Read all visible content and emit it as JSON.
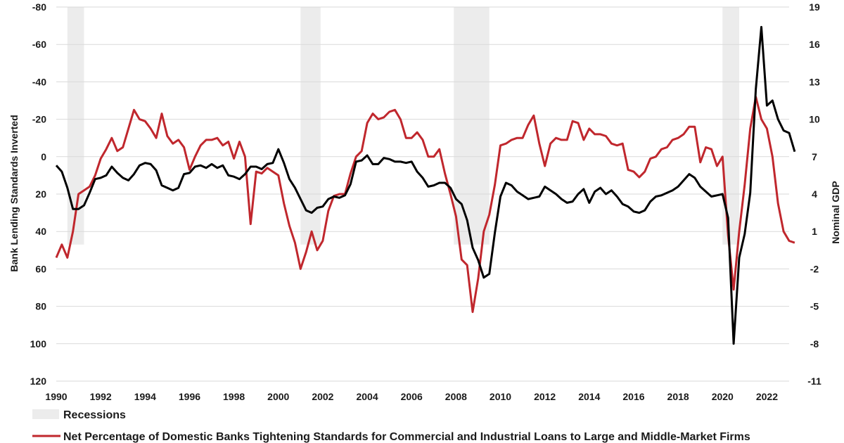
{
  "chart_data": {
    "type": "line",
    "title": "",
    "y_left": {
      "label": "Bank Lending Standards Inverted",
      "ylim": [
        -80,
        120
      ],
      "inverted": true,
      "ticks": [
        -80,
        -60,
        -40,
        -20,
        0,
        20,
        40,
        60,
        80,
        100,
        120
      ]
    },
    "y_right": {
      "label": "Nominal GDP",
      "ylim": [
        -11,
        19
      ],
      "ticks": [
        19,
        16,
        13,
        10,
        7,
        4,
        1,
        -2,
        -5,
        -8,
        -11
      ]
    },
    "x_axis": {
      "xlim": [
        1990,
        2023
      ],
      "ticks": [
        1990,
        1992,
        1994,
        1996,
        1998,
        2000,
        2002,
        2004,
        2006,
        2008,
        2010,
        2012,
        2014,
        2016,
        2018,
        2020,
        2022
      ]
    },
    "grid": true,
    "recessions": [
      [
        1990.5,
        1991.25
      ],
      [
        2001.0,
        2001.9
      ],
      [
        2007.9,
        2009.5
      ],
      [
        2020.0,
        2020.75
      ]
    ],
    "legend": [
      {
        "label": "Recessions",
        "kind": "area",
        "color": "#ececec"
      },
      {
        "label": "Net Percentage of Domestic Banks Tightening Standards for Commercial and Industrial Loans to Large and Middle-Market Firms",
        "kind": "line",
        "color": "#c0272d"
      }
    ],
    "series": [
      {
        "name": "Net Percentage of Domestic Banks Tightening Standards for Commercial and Industrial Loans to Large and Middle-Market Firms",
        "axis": "left",
        "color": "#c0272d",
        "points": [
          [
            1990.0,
            54
          ],
          [
            1990.25,
            47
          ],
          [
            1990.5,
            54
          ],
          [
            1990.75,
            40
          ],
          [
            1991.0,
            20
          ],
          [
            1991.25,
            18
          ],
          [
            1991.5,
            16
          ],
          [
            1991.75,
            10
          ],
          [
            1992.0,
            1
          ],
          [
            1992.25,
            -4
          ],
          [
            1992.5,
            -10
          ],
          [
            1992.75,
            -3
          ],
          [
            1993.0,
            -5
          ],
          [
            1993.25,
            -15
          ],
          [
            1993.5,
            -25
          ],
          [
            1993.75,
            -20
          ],
          [
            1994.0,
            -19
          ],
          [
            1994.25,
            -15
          ],
          [
            1994.5,
            -10
          ],
          [
            1994.75,
            -23
          ],
          [
            1995.0,
            -11
          ],
          [
            1995.25,
            -7
          ],
          [
            1995.5,
            -9
          ],
          [
            1995.75,
            -5
          ],
          [
            1996.0,
            7
          ],
          [
            1996.25,
            0
          ],
          [
            1996.5,
            -6
          ],
          [
            1996.75,
            -9
          ],
          [
            1997.0,
            -9
          ],
          [
            1997.25,
            -10
          ],
          [
            1997.5,
            -6
          ],
          [
            1997.75,
            -8
          ],
          [
            1998.0,
            1
          ],
          [
            1998.25,
            -8
          ],
          [
            1998.5,
            0
          ],
          [
            1998.75,
            36
          ],
          [
            1999.0,
            8
          ],
          [
            1999.25,
            9
          ],
          [
            1999.5,
            6
          ],
          [
            1999.75,
            8
          ],
          [
            2000.0,
            10
          ],
          [
            2000.25,
            25
          ],
          [
            2000.5,
            37
          ],
          [
            2000.75,
            46
          ],
          [
            2001.0,
            60
          ],
          [
            2001.25,
            51
          ],
          [
            2001.5,
            40
          ],
          [
            2001.75,
            50
          ],
          [
            2002.0,
            45
          ],
          [
            2002.25,
            29
          ],
          [
            2002.5,
            21
          ],
          [
            2002.75,
            20
          ],
          [
            2003.0,
            20
          ],
          [
            2003.25,
            9
          ],
          [
            2003.5,
            0
          ],
          [
            2003.75,
            -3
          ],
          [
            2004.0,
            -18
          ],
          [
            2004.25,
            -23
          ],
          [
            2004.5,
            -20
          ],
          [
            2004.75,
            -21
          ],
          [
            2005.0,
            -24
          ],
          [
            2005.25,
            -25
          ],
          [
            2005.5,
            -20
          ],
          [
            2005.75,
            -10
          ],
          [
            2006.0,
            -10
          ],
          [
            2006.25,
            -13
          ],
          [
            2006.5,
            -9
          ],
          [
            2006.75,
            0
          ],
          [
            2007.0,
            0
          ],
          [
            2007.25,
            -4
          ],
          [
            2007.5,
            9
          ],
          [
            2007.75,
            20
          ],
          [
            2008.0,
            32
          ],
          [
            2008.25,
            55
          ],
          [
            2008.5,
            58
          ],
          [
            2008.75,
            83
          ],
          [
            2009.0,
            65
          ],
          [
            2009.25,
            40
          ],
          [
            2009.5,
            31
          ],
          [
            2009.75,
            15
          ],
          [
            2010.0,
            -6
          ],
          [
            2010.25,
            -7
          ],
          [
            2010.5,
            -9
          ],
          [
            2010.75,
            -10
          ],
          [
            2011.0,
            -10
          ],
          [
            2011.25,
            -17
          ],
          [
            2011.5,
            -22
          ],
          [
            2011.75,
            -7
          ],
          [
            2012.0,
            5
          ],
          [
            2012.25,
            -7
          ],
          [
            2012.5,
            -10
          ],
          [
            2012.75,
            -9
          ],
          [
            2013.0,
            -9
          ],
          [
            2013.25,
            -19
          ],
          [
            2013.5,
            -18
          ],
          [
            2013.75,
            -9
          ],
          [
            2014.0,
            -15
          ],
          [
            2014.25,
            -12
          ],
          [
            2014.5,
            -12
          ],
          [
            2014.75,
            -11
          ],
          [
            2015.0,
            -7
          ],
          [
            2015.25,
            -6
          ],
          [
            2015.5,
            -7
          ],
          [
            2015.75,
            7
          ],
          [
            2016.0,
            8
          ],
          [
            2016.25,
            11
          ],
          [
            2016.5,
            8
          ],
          [
            2016.75,
            1
          ],
          [
            2017.0,
            0
          ],
          [
            2017.25,
            -4
          ],
          [
            2017.5,
            -5
          ],
          [
            2017.75,
            -9
          ],
          [
            2018.0,
            -10
          ],
          [
            2018.25,
            -12
          ],
          [
            2018.5,
            -16
          ],
          [
            2018.75,
            -16
          ],
          [
            2019.0,
            3
          ],
          [
            2019.25,
            -5
          ],
          [
            2019.5,
            -4
          ],
          [
            2019.75,
            5
          ],
          [
            2020.0,
            0
          ],
          [
            2020.25,
            42
          ],
          [
            2020.5,
            71
          ],
          [
            2020.75,
            40
          ],
          [
            2021.0,
            15
          ],
          [
            2021.25,
            -15
          ],
          [
            2021.5,
            -32
          ],
          [
            2021.75,
            -20
          ],
          [
            2022.0,
            -15
          ],
          [
            2022.25,
            0
          ],
          [
            2022.5,
            25
          ],
          [
            2022.75,
            40
          ],
          [
            2023.0,
            45
          ],
          [
            2023.25,
            46
          ]
        ]
      },
      {
        "name": "Nominal GDP",
        "axis": "right",
        "color": "#000000",
        "points": [
          [
            1990.0,
            6.3
          ],
          [
            1990.25,
            5.8
          ],
          [
            1990.5,
            4.5
          ],
          [
            1990.75,
            2.8
          ],
          [
            1991.0,
            2.8
          ],
          [
            1991.25,
            3.1
          ],
          [
            1991.5,
            4.1
          ],
          [
            1991.75,
            5.2
          ],
          [
            1992.0,
            5.3
          ],
          [
            1992.25,
            5.5
          ],
          [
            1992.5,
            6.2
          ],
          [
            1992.75,
            5.7
          ],
          [
            1993.0,
            5.3
          ],
          [
            1993.25,
            5.1
          ],
          [
            1993.5,
            5.6
          ],
          [
            1993.75,
            6.3
          ],
          [
            1994.0,
            6.5
          ],
          [
            1994.25,
            6.4
          ],
          [
            1994.5,
            5.9
          ],
          [
            1994.75,
            4.7
          ],
          [
            1995.0,
            4.5
          ],
          [
            1995.25,
            4.3
          ],
          [
            1995.5,
            4.5
          ],
          [
            1995.75,
            5.6
          ],
          [
            1996.0,
            5.7
          ],
          [
            1996.25,
            6.2
          ],
          [
            1996.5,
            6.3
          ],
          [
            1996.75,
            6.1
          ],
          [
            1997.0,
            6.4
          ],
          [
            1997.25,
            6.1
          ],
          [
            1997.5,
            6.3
          ],
          [
            1997.75,
            5.5
          ],
          [
            1998.0,
            5.4
          ],
          [
            1998.25,
            5.2
          ],
          [
            1998.5,
            5.6
          ],
          [
            1998.75,
            6.2
          ],
          [
            1999.0,
            6.2
          ],
          [
            1999.25,
            6.0
          ],
          [
            1999.5,
            6.4
          ],
          [
            1999.75,
            6.5
          ],
          [
            2000.0,
            7.6
          ],
          [
            2000.25,
            6.5
          ],
          [
            2000.5,
            5.2
          ],
          [
            2000.75,
            4.5
          ],
          [
            2001.0,
            3.6
          ],
          [
            2001.25,
            2.7
          ],
          [
            2001.5,
            2.5
          ],
          [
            2001.75,
            2.9
          ],
          [
            2002.0,
            3.0
          ],
          [
            2002.25,
            3.6
          ],
          [
            2002.5,
            3.8
          ],
          [
            2002.75,
            3.7
          ],
          [
            2003.0,
            3.9
          ],
          [
            2003.25,
            4.8
          ],
          [
            2003.5,
            6.6
          ],
          [
            2003.75,
            6.7
          ],
          [
            2004.0,
            7.1
          ],
          [
            2004.25,
            6.4
          ],
          [
            2004.5,
            6.4
          ],
          [
            2004.75,
            6.9
          ],
          [
            2005.0,
            6.8
          ],
          [
            2005.25,
            6.6
          ],
          [
            2005.5,
            6.6
          ],
          [
            2005.75,
            6.5
          ],
          [
            2006.0,
            6.6
          ],
          [
            2006.25,
            5.8
          ],
          [
            2006.5,
            5.3
          ],
          [
            2006.75,
            4.6
          ],
          [
            2007.0,
            4.7
          ],
          [
            2007.25,
            4.9
          ],
          [
            2007.5,
            4.9
          ],
          [
            2007.75,
            4.5
          ],
          [
            2008.0,
            3.6
          ],
          [
            2008.25,
            3.2
          ],
          [
            2008.5,
            1.9
          ],
          [
            2008.75,
            -0.3
          ],
          [
            2009.0,
            -1.3
          ],
          [
            2009.25,
            -2.7
          ],
          [
            2009.5,
            -2.4
          ],
          [
            2009.75,
            0.9
          ],
          [
            2010.0,
            3.8
          ],
          [
            2010.25,
            4.9
          ],
          [
            2010.5,
            4.7
          ],
          [
            2010.75,
            4.2
          ],
          [
            2011.0,
            3.9
          ],
          [
            2011.25,
            3.6
          ],
          [
            2011.5,
            3.7
          ],
          [
            2011.75,
            3.8
          ],
          [
            2012.0,
            4.6
          ],
          [
            2012.25,
            4.3
          ],
          [
            2012.5,
            4.0
          ],
          [
            2012.75,
            3.6
          ],
          [
            2013.0,
            3.3
          ],
          [
            2013.25,
            3.4
          ],
          [
            2013.5,
            4.0
          ],
          [
            2013.75,
            4.4
          ],
          [
            2014.0,
            3.3
          ],
          [
            2014.25,
            4.2
          ],
          [
            2014.5,
            4.5
          ],
          [
            2014.75,
            4.0
          ],
          [
            2015.0,
            4.3
          ],
          [
            2015.25,
            3.8
          ],
          [
            2015.5,
            3.2
          ],
          [
            2015.75,
            3.0
          ],
          [
            2016.0,
            2.6
          ],
          [
            2016.25,
            2.5
          ],
          [
            2016.5,
            2.7
          ],
          [
            2016.75,
            3.4
          ],
          [
            2017.0,
            3.8
          ],
          [
            2017.25,
            3.9
          ],
          [
            2017.5,
            4.1
          ],
          [
            2017.75,
            4.3
          ],
          [
            2018.0,
            4.6
          ],
          [
            2018.25,
            5.1
          ],
          [
            2018.5,
            5.6
          ],
          [
            2018.75,
            5.3
          ],
          [
            2019.0,
            4.6
          ],
          [
            2019.25,
            4.2
          ],
          [
            2019.5,
            3.8
          ],
          [
            2019.75,
            3.9
          ],
          [
            2020.0,
            4.0
          ],
          [
            2020.25,
            2.1
          ],
          [
            2020.5,
            -8.0
          ],
          [
            2020.75,
            -1.1
          ],
          [
            2021.0,
            0.8
          ],
          [
            2021.25,
            4.1
          ],
          [
            2021.5,
            12.4
          ],
          [
            2021.75,
            17.4
          ],
          [
            2022.0,
            11.1
          ],
          [
            2022.25,
            11.5
          ],
          [
            2022.5,
            10.0
          ],
          [
            2022.75,
            9.1
          ],
          [
            2023.0,
            8.9
          ],
          [
            2023.25,
            7.4
          ]
        ]
      }
    ]
  }
}
